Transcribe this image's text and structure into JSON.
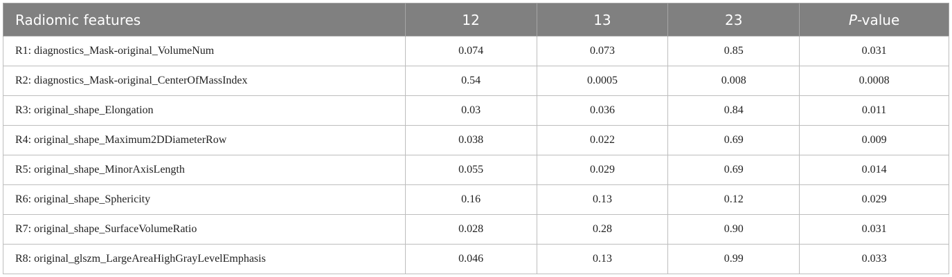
{
  "table": {
    "header": [
      "Radiomic features",
      "12",
      "13",
      "23",
      "P-value"
    ],
    "rows": [
      [
        "R1: diagnostics_Mask-original_VolumeNum",
        "0.074",
        "0.073",
        "0.85",
        "0.031"
      ],
      [
        "R2: diagnostics_Mask-original_CenterOfMassIndex",
        "0.54",
        "0.0005",
        "0.008",
        "0.0008"
      ],
      [
        "R3: original_shape_Elongation",
        "0.03",
        "0.036",
        "0.84",
        "0.011"
      ],
      [
        "R4: original_shape_Maximum2DDiameterRow",
        "0.038",
        "0.022",
        "0.69",
        "0.009"
      ],
      [
        "R5: original_shape_MinorAxisLength",
        "0.055",
        "0.029",
        "0.69",
        "0.014"
      ],
      [
        "R6: original_shape_Sphericity",
        "0.16",
        "0.13",
        "0.12",
        "0.029"
      ],
      [
        "R7: original_shape_SurfaceVolumeRatio",
        "0.028",
        "0.28",
        "0.90",
        "0.031"
      ],
      [
        "R8: original_glszm_LargeAreaHighGrayLevelEmphasis",
        "0.046",
        "0.13",
        "0.99",
        "0.033"
      ]
    ]
  }
}
